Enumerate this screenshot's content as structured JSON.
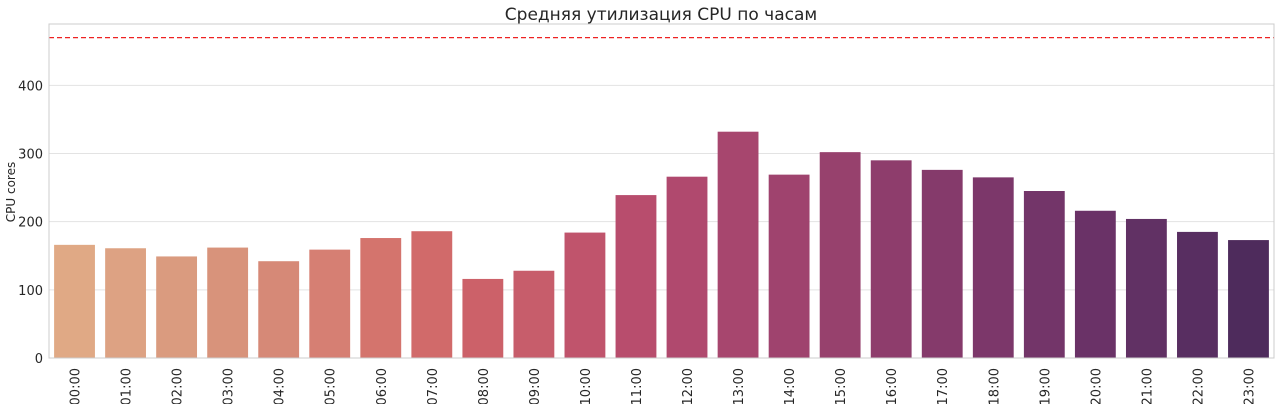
{
  "chart_data": {
    "type": "bar",
    "title": "Средняя утилизация CPU по часам",
    "xlabel": "",
    "ylabel": "CPU cores",
    "categories": [
      "00:00",
      "01:00",
      "02:00",
      "03:00",
      "04:00",
      "05:00",
      "06:00",
      "07:00",
      "08:00",
      "09:00",
      "10:00",
      "11:00",
      "12:00",
      "13:00",
      "14:00",
      "15:00",
      "16:00",
      "17:00",
      "18:00",
      "19:00",
      "20:00",
      "21:00",
      "22:00",
      "23:00"
    ],
    "values": [
      166,
      161,
      149,
      162,
      142,
      159,
      176,
      186,
      116,
      128,
      184,
      239,
      266,
      332,
      269,
      302,
      290,
      276,
      265,
      245,
      216,
      204,
      185,
      173
    ],
    "colors": [
      "#e0a985",
      "#dda283",
      "#da9b7f",
      "#d8937b",
      "#d68977",
      "#d67f73",
      "#d4746d",
      "#d16a6a",
      "#cc6169",
      "#c75d6b",
      "#c0546c",
      "#b84d6d",
      "#b0496e",
      "#a7466e",
      "#9f436e",
      "#97416d",
      "#8e3d6c",
      "#853a6b",
      "#7c376a",
      "#733569",
      "#6a3267",
      "#613164",
      "#582e61",
      "#4e2b5c"
    ],
    "ylim": [
      0,
      490
    ],
    "yticks": [
      0,
      100,
      200,
      300,
      400
    ],
    "reference_line": {
      "value": 470,
      "color": "#ee2222",
      "style": "dashed"
    },
    "grid": true
  }
}
